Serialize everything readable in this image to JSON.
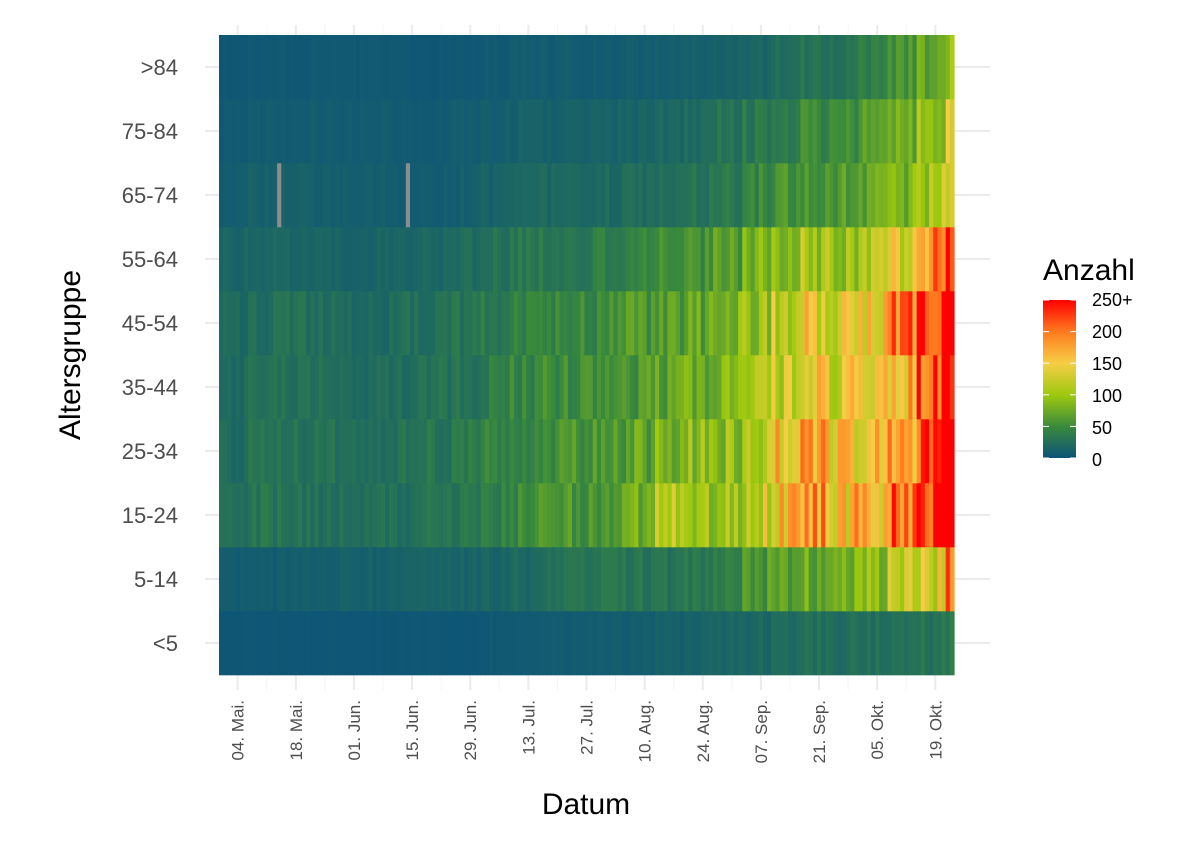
{
  "chart_data": {
    "type": "heatmap",
    "xlabel": "Datum",
    "ylabel": "Altersgruppe",
    "x_range": [
      "2020-04-30",
      "2020-10-23"
    ],
    "x_tick_labels": [
      "04. Mai.",
      "18. Mai.",
      "01. Jun.",
      "15. Jun.",
      "29. Jun.",
      "13. Jul.",
      "27. Jul.",
      "10. Aug.",
      "24. Aug.",
      "07. Sep.",
      "21. Sep.",
      "05. Okt.",
      "19. Okt."
    ],
    "x_tick_dates": [
      "2020-05-04",
      "2020-05-18",
      "2020-06-01",
      "2020-06-15",
      "2020-06-29",
      "2020-07-13",
      "2020-07-27",
      "2020-08-10",
      "2020-08-24",
      "2020-09-07",
      "2020-09-21",
      "2020-10-05",
      "2020-10-19"
    ],
    "y_categories": [
      "<5",
      "5-14",
      "15-24",
      "25-34",
      "35-44",
      "45-54",
      "55-64",
      "65-74",
      "75-84",
      ">84"
    ],
    "week_starts": [
      "2020-04-30",
      "2020-05-07",
      "2020-05-14",
      "2020-05-21",
      "2020-05-28",
      "2020-06-04",
      "2020-06-11",
      "2020-06-18",
      "2020-06-25",
      "2020-07-02",
      "2020-07-09",
      "2020-07-16",
      "2020-07-23",
      "2020-07-30",
      "2020-08-06",
      "2020-08-13",
      "2020-08-20",
      "2020-08-27",
      "2020-09-03",
      "2020-09-10",
      "2020-09-17",
      "2020-09-24",
      "2020-10-01",
      "2020-10-08",
      "2020-10-15",
      "2020-10-22"
    ],
    "weekly_values": {
      "<5": [
        3,
        3,
        3,
        3,
        3,
        3,
        3,
        3,
        3,
        5,
        6,
        8,
        8,
        9,
        9,
        12,
        14,
        16,
        18,
        22,
        25,
        25,
        25,
        28,
        30,
        34
      ],
      "5-14": [
        8,
        8,
        9,
        10,
        12,
        12,
        14,
        14,
        14,
        16,
        20,
        25,
        28,
        30,
        30,
        28,
        32,
        38,
        62,
        70,
        75,
        80,
        95,
        110,
        130,
        190
      ],
      "15-24": [
        25,
        30,
        28,
        25,
        25,
        25,
        25,
        28,
        32,
        40,
        48,
        55,
        60,
        65,
        80,
        110,
        100,
        100,
        130,
        160,
        180,
        160,
        150,
        200,
        255,
        275
      ],
      "25-34": [
        22,
        28,
        28,
        28,
        25,
        25,
        28,
        30,
        35,
        45,
        50,
        55,
        60,
        60,
        70,
        85,
        90,
        95,
        120,
        150,
        170,
        150,
        150,
        190,
        240,
        270
      ],
      "35-44": [
        20,
        25,
        28,
        25,
        22,
        22,
        25,
        28,
        30,
        40,
        45,
        50,
        50,
        55,
        60,
        70,
        80,
        85,
        100,
        125,
        140,
        135,
        145,
        180,
        220,
        260
      ],
      "45-54": [
        20,
        25,
        26,
        25,
        22,
        22,
        25,
        26,
        30,
        38,
        42,
        45,
        48,
        50,
        58,
        65,
        72,
        80,
        100,
        125,
        140,
        130,
        150,
        200,
        250,
        270
      ],
      "55-64": [
        16,
        18,
        18,
        16,
        16,
        16,
        16,
        18,
        22,
        28,
        32,
        35,
        35,
        38,
        42,
        48,
        55,
        65,
        80,
        95,
        105,
        100,
        110,
        140,
        200,
        260
      ],
      "65-74": [
        8,
        12,
        12,
        10,
        10,
        10,
        8,
        8,
        10,
        14,
        16,
        18,
        20,
        20,
        22,
        25,
        30,
        38,
        48,
        55,
        62,
        60,
        70,
        85,
        110,
        150
      ],
      "75-84": [
        6,
        8,
        8,
        8,
        8,
        8,
        6,
        6,
        8,
        10,
        12,
        12,
        14,
        14,
        15,
        18,
        22,
        28,
        34,
        42,
        50,
        50,
        58,
        72,
        95,
        130
      ],
      ">84": [
        4,
        5,
        5,
        5,
        5,
        5,
        4,
        4,
        5,
        6,
        8,
        8,
        8,
        8,
        9,
        10,
        12,
        14,
        18,
        24,
        28,
        28,
        38,
        55,
        70,
        95
      ]
    },
    "missing_cells": [
      {
        "group": "65-74",
        "date": "2020-05-14"
      },
      {
        "group": "65-74",
        "date": "2020-06-14"
      }
    ],
    "legend": {
      "title": "Anzahl",
      "labels": [
        "250+",
        "200",
        "150",
        "100",
        "50",
        "0"
      ],
      "stop_values": [
        0,
        50,
        100,
        150,
        200,
        250
      ],
      "colors": [
        "#0c5379",
        "#3a8a3c",
        "#9ec90f",
        "#f6ce46",
        "#ff7a1f",
        "#ff0000"
      ],
      "placement": "right"
    },
    "grid": true,
    "missing_color": "#8c8c8c"
  }
}
